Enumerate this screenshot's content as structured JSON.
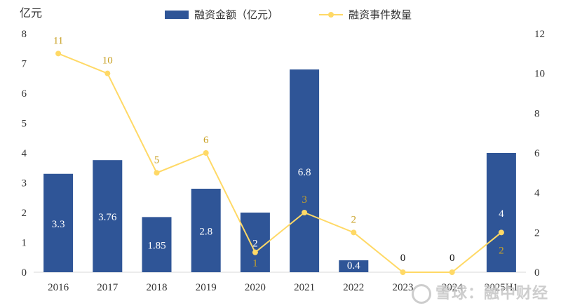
{
  "chart_data": {
    "type": "bar",
    "categories": [
      "2016",
      "2017",
      "2018",
      "2019",
      "2020",
      "2021",
      "2022",
      "2023",
      "2024",
      "2025H1"
    ],
    "y_left_unit": "亿元",
    "ylim_left": [
      0,
      8
    ],
    "ylim_right": [
      0,
      12
    ],
    "left_ticks": [
      "0",
      "1",
      "2",
      "3",
      "4",
      "5",
      "6",
      "7",
      "8"
    ],
    "right_ticks": [
      "0",
      "2",
      "4",
      "6",
      "8",
      "10",
      "12"
    ],
    "grid": false,
    "legend_position": "top",
    "series": [
      {
        "name": "融资金额（亿元）",
        "type": "bar",
        "axis": "left",
        "color": "#2F5597",
        "values": [
          3.3,
          3.76,
          1.85,
          2.8,
          2,
          6.8,
          0.4,
          0,
          0,
          4
        ],
        "labels": [
          "3.3",
          "3.76",
          "1.85",
          "2.8",
          "2",
          "6.8",
          "0.4",
          "0",
          "0",
          "4"
        ]
      },
      {
        "name": "融资事件数量",
        "type": "line",
        "axis": "right",
        "color": "#FFD966",
        "label_color": "#C9A227",
        "values": [
          11,
          10,
          5,
          6,
          1,
          3,
          2,
          0,
          0,
          2
        ],
        "labels": [
          "11",
          "10",
          "5",
          "6",
          "1",
          "3",
          "2",
          "",
          "",
          "2"
        ]
      }
    ]
  },
  "watermark": "雪球：融中财经"
}
